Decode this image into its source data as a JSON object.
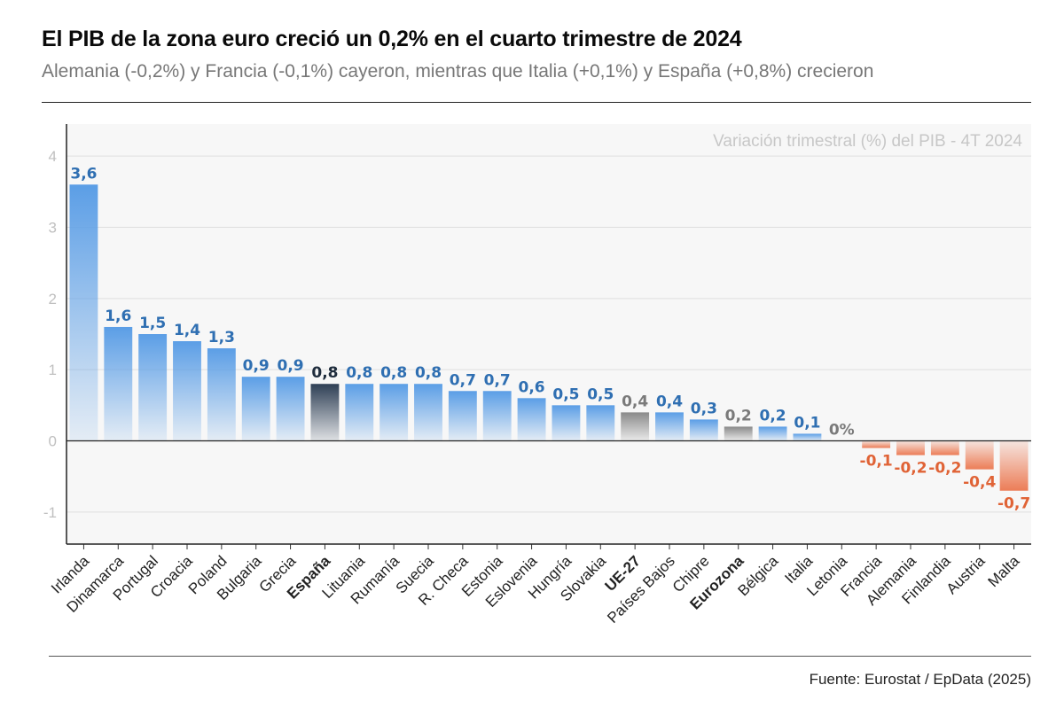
{
  "header": {
    "title": "El PIB de la zona euro creció un 0,2% en el cuarto trimestre de 2024",
    "subtitle": "Alemania (-0,2%) y Francia (-0,1%) cayeron, mientras que Italia (+0,1%) y España (+0,8%) crecieron"
  },
  "footer": {
    "source": "Fuente: Eurostat / EpData (2025)"
  },
  "colors": {
    "positive": "#5b9ee6",
    "positive_label": "#2f6fb2",
    "negative": "#ec7d57",
    "negative_label": "#e06336",
    "highlight": "#2e3f55",
    "highlight_label": "#1f2d3d",
    "aggregate": "#8a8a8a",
    "aggregate_label": "#7a7a7a",
    "aggregate_category": "#9a9a9a",
    "grid": "#dedede",
    "plot_bg": "#f7f7f7"
  },
  "chart_data": {
    "type": "bar",
    "title": "Variación trimestral (%) del PIB - 4T 2024",
    "xlabel": "",
    "ylabel": "",
    "ylim": [
      -1.45,
      4.45
    ],
    "yticks": [
      -1,
      0,
      1,
      2,
      3,
      4
    ],
    "ytick_labels": [
      "-1",
      "0",
      "1",
      "2",
      "3",
      "4"
    ],
    "grid": true,
    "categories": [
      "Irlanda",
      "Dinamarca",
      "Portugal",
      "Croacia",
      "Poland",
      "Bulgaria",
      "Grecia",
      "España",
      "Lituania",
      "Rumanía",
      "Suecia",
      "R. Checa",
      "Estonia",
      "Eslovenia",
      "Hungría",
      "Slovakia",
      "UE-27",
      "Países Bajos",
      "Chipre",
      "Eurozona",
      "Bélgica",
      "Italia",
      "Letonia",
      "Francia",
      "Alemania",
      "Finlandia",
      "Austria",
      "Malta"
    ],
    "values": [
      3.6,
      1.6,
      1.5,
      1.4,
      1.3,
      0.9,
      0.9,
      0.8,
      0.8,
      0.8,
      0.8,
      0.7,
      0.7,
      0.6,
      0.5,
      0.5,
      0.4,
      0.4,
      0.3,
      0.2,
      0.2,
      0.1,
      0,
      -0.1,
      -0.2,
      -0.2,
      -0.4,
      -0.7
    ],
    "value_labels": [
      "3,6",
      "1,6",
      "1,5",
      "1,4",
      "1,3",
      "0,9",
      "0,9",
      "0,8",
      "0,8",
      "0,8",
      "0,8",
      "0,7",
      "0,7",
      "0,6",
      "0,5",
      "0,5",
      "0,4",
      "0,4",
      "0,3",
      "0,2",
      "0,2",
      "0,1",
      "0%",
      "-0,1",
      "-0,2",
      "-0,2",
      "-0,4",
      "-0,7"
    ],
    "highlight": [
      "España"
    ],
    "aggregates": [
      "UE-27",
      "Eurozona"
    ]
  }
}
